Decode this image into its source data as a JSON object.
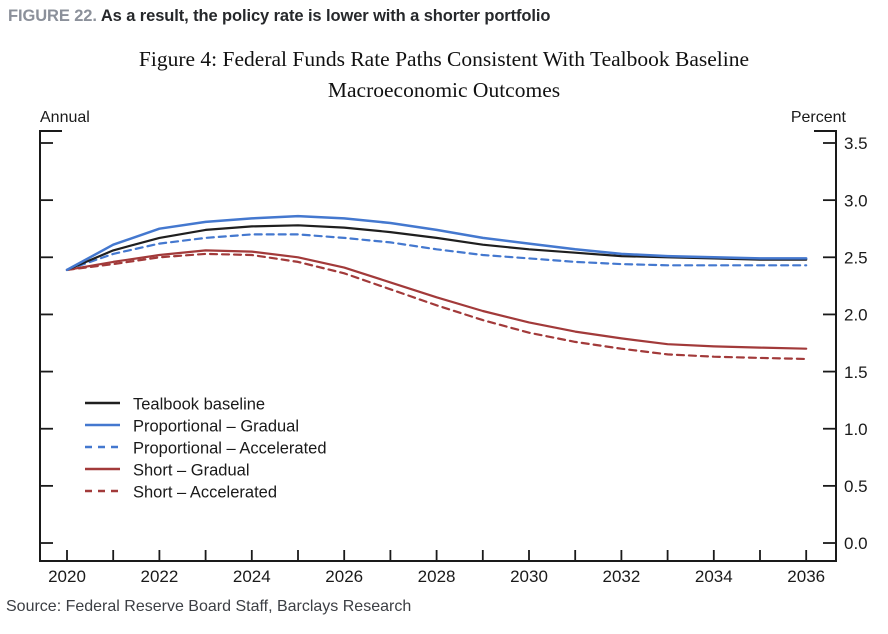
{
  "figure_header": {
    "label": "FIGURE 22.",
    "text": "As a result, the policy rate is lower with a shorter portfolio"
  },
  "source_line": "Source: Federal Reserve Board Staff, Barclays Research",
  "colors": {
    "blue": "#4478cf",
    "red": "#a23a3a",
    "black": "#1f1f1f",
    "axis": "#1a1a1a",
    "header_label_gray": "#8b909a",
    "header_text_dark": "#26282b"
  },
  "chart_data": {
    "type": "line",
    "title": "Figure 4: Federal Funds Rate Paths Consistent With Tealbook Baseline Macroeconomic Outcomes",
    "title_lines": [
      "Figure 4: Federal Funds Rate Paths Consistent With Tealbook Baseline",
      "Macroeconomic Outcomes"
    ],
    "left_axis_label": "Annual",
    "right_axis_label": "Percent",
    "grid": false,
    "legend_position": "inside-middle-left",
    "x": [
      2020,
      2021,
      2022,
      2023,
      2024,
      2025,
      2026,
      2027,
      2028,
      2029,
      2030,
      2031,
      2032,
      2033,
      2034,
      2035,
      2036
    ],
    "x_tick_years": [
      2020,
      2021,
      2022,
      2023,
      2024,
      2025,
      2026,
      2027,
      2028,
      2029,
      2030,
      2031,
      2032,
      2033,
      2034,
      2035,
      2036
    ],
    "x_label_years": [
      2020,
      2022,
      2024,
      2026,
      2028,
      2030,
      2032,
      2034,
      2036
    ],
    "ylim": [
      0.0,
      3.5
    ],
    "y_ticks": [
      0.0,
      0.5,
      1.0,
      1.5,
      2.0,
      2.5,
      3.0,
      3.5
    ],
    "series": [
      {
        "name": "Tealbook baseline",
        "color": "black",
        "style": "solid",
        "values": [
          2.39,
          2.56,
          2.67,
          2.74,
          2.77,
          2.78,
          2.76,
          2.72,
          2.67,
          2.61,
          2.57,
          2.54,
          2.51,
          2.5,
          2.49,
          2.48,
          2.48
        ]
      },
      {
        "name": "Proportional – Gradual",
        "color": "blue",
        "style": "solid",
        "values": [
          2.39,
          2.61,
          2.75,
          2.81,
          2.84,
          2.86,
          2.84,
          2.8,
          2.74,
          2.67,
          2.62,
          2.57,
          2.53,
          2.51,
          2.5,
          2.49,
          2.49
        ]
      },
      {
        "name": "Proportional – Accelerated",
        "color": "blue",
        "style": "dashed",
        "values": [
          2.39,
          2.53,
          2.62,
          2.67,
          2.7,
          2.7,
          2.67,
          2.63,
          2.57,
          2.52,
          2.49,
          2.46,
          2.44,
          2.43,
          2.43,
          2.43,
          2.43
        ]
      },
      {
        "name": "Short – Gradual",
        "color": "red",
        "style": "solid",
        "values": [
          2.39,
          2.46,
          2.52,
          2.56,
          2.55,
          2.5,
          2.41,
          2.28,
          2.15,
          2.03,
          1.93,
          1.85,
          1.79,
          1.74,
          1.72,
          1.71,
          1.7
        ]
      },
      {
        "name": "Short – Accelerated",
        "color": "red",
        "style": "dashed",
        "values": [
          2.39,
          2.44,
          2.5,
          2.53,
          2.52,
          2.46,
          2.36,
          2.22,
          2.08,
          1.95,
          1.84,
          1.76,
          1.7,
          1.65,
          1.63,
          1.62,
          1.61
        ]
      }
    ]
  }
}
